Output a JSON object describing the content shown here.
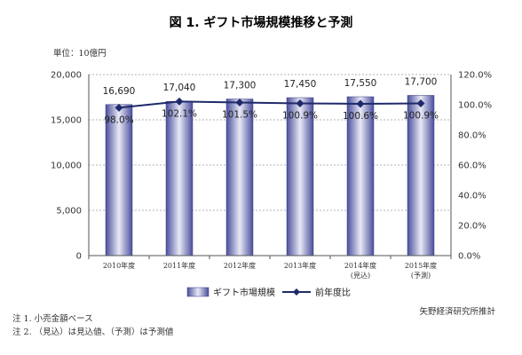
{
  "chart_data": {
    "type": "bar",
    "title": "図 1. ギフト市場規模推移と予測",
    "unit_label": "単位：10億円",
    "categories": [
      [
        "2010年度"
      ],
      [
        "2011年度"
      ],
      [
        "2012年度"
      ],
      [
        "2013年度"
      ],
      [
        "2014年度",
        "(見込)"
      ],
      [
        "2015年度",
        "(予測)"
      ]
    ],
    "series": [
      {
        "name": "ギフト市場規模",
        "type": "bar",
        "axis": "left",
        "values": [
          16690,
          17040,
          17300,
          17450,
          17550,
          17700
        ],
        "labels": [
          "16,690",
          "17,040",
          "17,300",
          "17,450",
          "17,550",
          "17,700"
        ]
      },
      {
        "name": "前年度比",
        "type": "line",
        "axis": "right",
        "values": [
          98.0,
          102.1,
          101.5,
          100.9,
          100.6,
          100.9
        ],
        "labels": [
          "98.0%",
          "102.1%",
          "101.5%",
          "100.9%",
          "100.6%",
          "100.9%"
        ]
      }
    ],
    "y_left": {
      "min": 0,
      "max": 20000,
      "ticks": [
        0,
        5000,
        10000,
        15000,
        20000
      ],
      "tick_labels": [
        "0",
        "5,000",
        "10,000",
        "15,000",
        "20,000"
      ]
    },
    "y_right": {
      "min": 0,
      "max": 120,
      "ticks": [
        0,
        20,
        40,
        60,
        80,
        100,
        120
      ],
      "tick_labels": [
        "0.0%",
        "20.0%",
        "40.0%",
        "60.0%",
        "80.0%",
        "100.0%",
        "120.0%"
      ]
    },
    "legend_position": "bottom",
    "colors": {
      "bar_dark": "#4a4f9c",
      "bar_light": "#e8e9f6",
      "line": "#1f2a6b",
      "grid": "#9a9a9a"
    }
  },
  "notes": [
    "注 1. 小売金額ベース",
    "注 2. （見込）は見込値、（予測）は予測値"
  ],
  "source": "矢野経済研究所推計"
}
